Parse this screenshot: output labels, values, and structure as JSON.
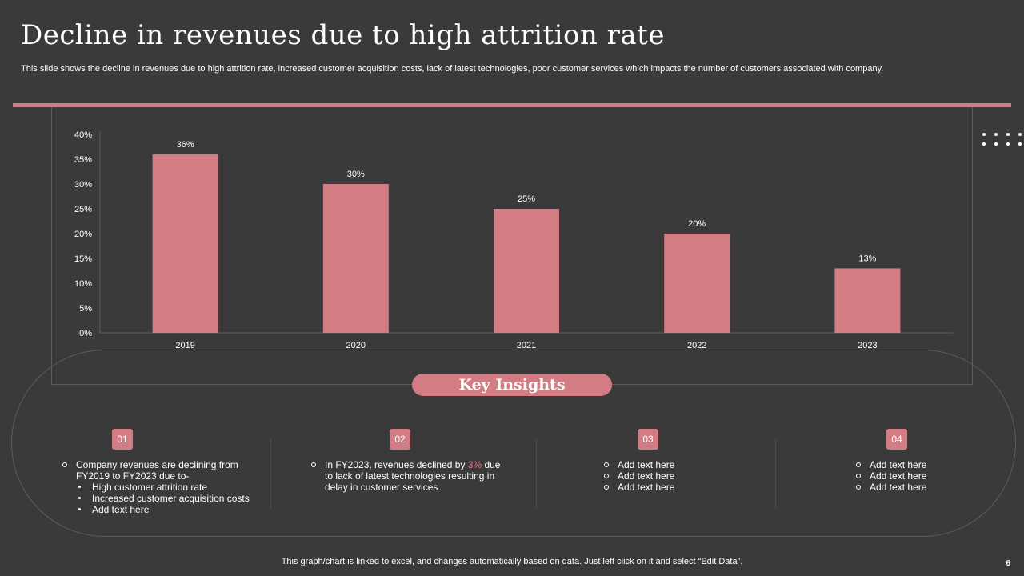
{
  "slide": {
    "title": "Decline in revenues due to high attrition rate",
    "subtitle": "This slide shows the decline in revenues due to high attrition rate,  increased customer acquisition costs, lack of latest technologies, poor customer services which impacts the number of customers associated with company.",
    "footnote": "This graph/chart is linked to excel,  and changes automatically based on data. Just left click on it and select “Edit Data”.",
    "page_number": "6",
    "accent_color": "#d47c83"
  },
  "chart_data": {
    "type": "bar",
    "categories": [
      "2019",
      "2020",
      "2021",
      "2022",
      "2023"
    ],
    "values": [
      36,
      30,
      25,
      20,
      13
    ],
    "value_labels": [
      "36%",
      "30%",
      "25%",
      "20%",
      "13%"
    ],
    "ylim": [
      0,
      40
    ],
    "y_ticks": [
      0,
      5,
      10,
      15,
      20,
      25,
      30,
      35,
      40
    ],
    "y_tick_labels": [
      "0%",
      "5%",
      "10%",
      "15%",
      "20%",
      "25%",
      "30%",
      "35%",
      "40%"
    ],
    "title": "",
    "xlabel": "",
    "ylabel": "",
    "grid": false,
    "bar_color": "#d47c83"
  },
  "insights": {
    "heading": "Key Insights",
    "items": [
      {
        "badge": "01",
        "main": "Company revenues are declining from FY2019 to FY2023 due to-",
        "bullets": [
          "High customer attrition rate",
          "Increased customer acquisition costs",
          "Add text here"
        ]
      },
      {
        "badge": "02",
        "text_before": "In FY2023, revenues declined by ",
        "highlight": "3%",
        "text_after": " due to  lack of latest technologies resulting in delay in customer services"
      },
      {
        "badge": "03",
        "lines": [
          "Add text here",
          "Add text here",
          "Add text here"
        ]
      },
      {
        "badge": "04",
        "lines": [
          "Add text here",
          "Add text here",
          "Add text here"
        ]
      }
    ]
  }
}
